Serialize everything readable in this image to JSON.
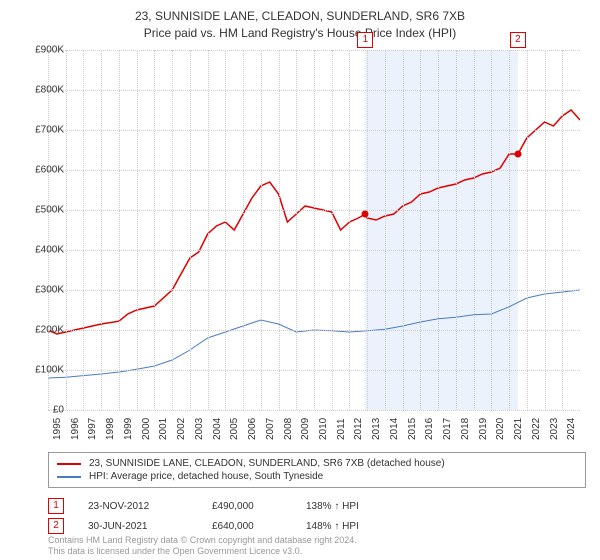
{
  "title_line1": "23, SUNNISIDE LANE, CLEADON, SUNDERLAND, SR6 7XB",
  "title_line2": "Price paid vs. HM Land Registry's House Price Index (HPI)",
  "chart": {
    "type": "line",
    "ylim": [
      0,
      900000
    ],
    "ytick_step": 100000,
    "ytick_labels": [
      "£0",
      "£100K",
      "£200K",
      "£300K",
      "£400K",
      "£500K",
      "£600K",
      "£700K",
      "£800K",
      "£900K"
    ],
    "x_years": [
      1995,
      1996,
      1997,
      1998,
      1999,
      2000,
      2001,
      2002,
      2003,
      2004,
      2005,
      2006,
      2007,
      2008,
      2009,
      2010,
      2011,
      2012,
      2013,
      2014,
      2015,
      2016,
      2017,
      2018,
      2019,
      2020,
      2021,
      2022,
      2023,
      2024
    ],
    "background_color": "#ffffff",
    "grid_color": "#cccccc",
    "series": [
      {
        "label": "23, SUNNISIDE LANE, CLEADON, SUNDERLAND, SR6 7XB (detached house)",
        "color": "#e00000",
        "line_width": 1.5,
        "data": [
          [
            1995,
            200000
          ],
          [
            1995.5,
            190000
          ],
          [
            1996,
            195000
          ],
          [
            1997,
            205000
          ],
          [
            1998,
            215000
          ],
          [
            1999,
            222000
          ],
          [
            1999.5,
            240000
          ],
          [
            2000,
            250000
          ],
          [
            2001,
            260000
          ],
          [
            2002,
            300000
          ],
          [
            2002.5,
            340000
          ],
          [
            2003,
            380000
          ],
          [
            2003.5,
            395000
          ],
          [
            2004,
            440000
          ],
          [
            2004.5,
            460000
          ],
          [
            2005,
            470000
          ],
          [
            2005.5,
            450000
          ],
          [
            2006,
            490000
          ],
          [
            2006.5,
            530000
          ],
          [
            2007,
            560000
          ],
          [
            2007.5,
            570000
          ],
          [
            2008,
            540000
          ],
          [
            2008.5,
            470000
          ],
          [
            2009,
            490000
          ],
          [
            2009.5,
            510000
          ],
          [
            2010,
            505000
          ],
          [
            2010.5,
            500000
          ],
          [
            2011,
            495000
          ],
          [
            2011.5,
            450000
          ],
          [
            2012,
            470000
          ],
          [
            2012.5,
            480000
          ],
          [
            2012.9,
            490000
          ],
          [
            2013,
            480000
          ],
          [
            2013.5,
            475000
          ],
          [
            2014,
            485000
          ],
          [
            2014.5,
            490000
          ],
          [
            2015,
            510000
          ],
          [
            2015.5,
            520000
          ],
          [
            2016,
            540000
          ],
          [
            2016.5,
            545000
          ],
          [
            2017,
            555000
          ],
          [
            2017.5,
            560000
          ],
          [
            2018,
            565000
          ],
          [
            2018.5,
            575000
          ],
          [
            2019,
            580000
          ],
          [
            2019.5,
            590000
          ],
          [
            2020,
            595000
          ],
          [
            2020.5,
            605000
          ],
          [
            2021,
            640000
          ],
          [
            2021.5,
            640000
          ],
          [
            2022,
            680000
          ],
          [
            2022.5,
            700000
          ],
          [
            2023,
            720000
          ],
          [
            2023.5,
            710000
          ],
          [
            2024,
            735000
          ],
          [
            2024.5,
            750000
          ],
          [
            2025,
            725000
          ]
        ]
      },
      {
        "label": "HPI: Average price, detached house, South Tyneside",
        "color": "#4a7bc8",
        "line_width": 1,
        "data": [
          [
            1995,
            80000
          ],
          [
            1996,
            82000
          ],
          [
            1997,
            86000
          ],
          [
            1998,
            90000
          ],
          [
            1999,
            95000
          ],
          [
            2000,
            102000
          ],
          [
            2001,
            110000
          ],
          [
            2002,
            125000
          ],
          [
            2003,
            150000
          ],
          [
            2004,
            180000
          ],
          [
            2005,
            195000
          ],
          [
            2006,
            210000
          ],
          [
            2007,
            225000
          ],
          [
            2008,
            215000
          ],
          [
            2009,
            195000
          ],
          [
            2010,
            200000
          ],
          [
            2011,
            198000
          ],
          [
            2012,
            195000
          ],
          [
            2013,
            198000
          ],
          [
            2014,
            202000
          ],
          [
            2015,
            210000
          ],
          [
            2016,
            220000
          ],
          [
            2017,
            228000
          ],
          [
            2018,
            232000
          ],
          [
            2019,
            238000
          ],
          [
            2020,
            240000
          ],
          [
            2021,
            258000
          ],
          [
            2022,
            280000
          ],
          [
            2023,
            290000
          ],
          [
            2024,
            295000
          ],
          [
            2025,
            300000
          ]
        ]
      }
    ],
    "shaded_band": {
      "x_start": 2012.9,
      "x_end": 2021.5,
      "color": "rgba(100,150,220,0.12)"
    },
    "markers": [
      {
        "n": "1",
        "x": 2012.9,
        "y": 490000,
        "color": "#e00000"
      },
      {
        "n": "2",
        "x": 2021.5,
        "y": 640000,
        "color": "#e00000"
      }
    ]
  },
  "legend": {
    "item1_label": "23, SUNNISIDE LANE, CLEADON, SUNDERLAND, SR6 7XB (detached house)",
    "item1_color": "#e00000",
    "item2_label": "HPI: Average price, detached house, South Tyneside",
    "item2_color": "#4a7bc8"
  },
  "sales": [
    {
      "n": "1",
      "date": "23-NOV-2012",
      "price": "£490,000",
      "pct": "138% ↑ HPI",
      "color": "#e00000"
    },
    {
      "n": "2",
      "date": "30-JUN-2021",
      "price": "£640,000",
      "pct": "148% ↑ HPI",
      "color": "#e00000"
    }
  ],
  "footer_line1": "Contains HM Land Registry data © Crown copyright and database right 2024.",
  "footer_line2": "This data is licensed under the Open Government Licence v3.0."
}
